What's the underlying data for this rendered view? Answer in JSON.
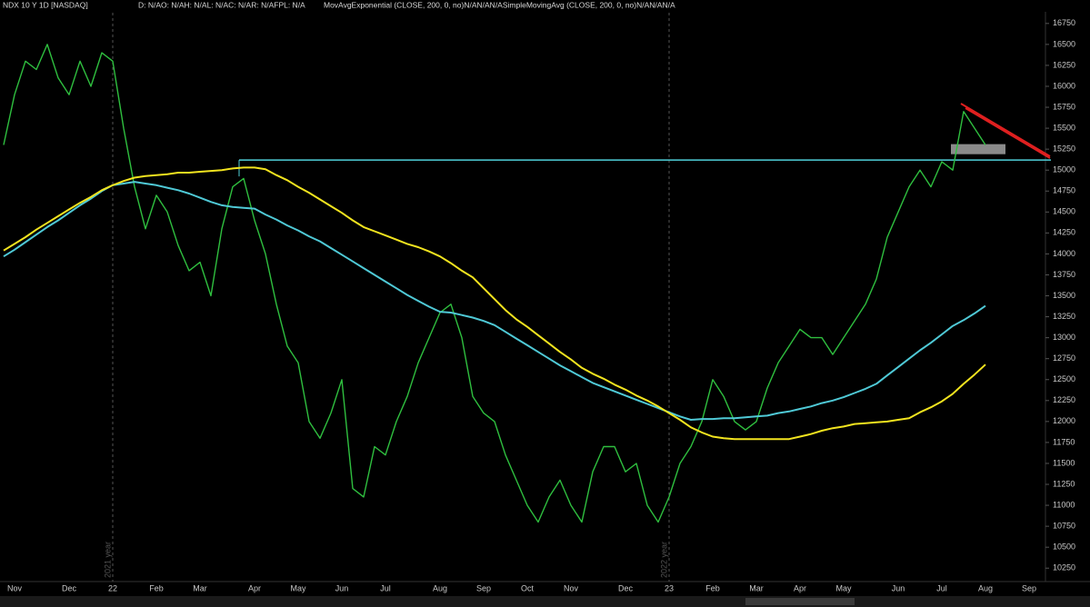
{
  "chart_data": {
    "type": "line",
    "title": "NDX 10 Y 1D [NASDAQ]",
    "subtitle": "D: N/AO: N/AH: N/AL: N/AC: N/AR: N/AFPL: N/A",
    "study_label": "MovAvgExponential (CLOSE, 200, 0, no)N/AN/AN/ASimpleMovingAvg (CLOSE, 200, 0, no)N/AN/AN/A",
    "year_labels": [
      "2021 year",
      "2022 year"
    ],
    "categories": [
      null,
      "Nov",
      null,
      null,
      null,
      null,
      "Dec",
      null,
      null,
      null,
      "22",
      null,
      null,
      null,
      "Feb",
      null,
      null,
      null,
      "Mar",
      null,
      null,
      null,
      null,
      "Apr",
      null,
      null,
      null,
      "May",
      null,
      null,
      null,
      "Jun",
      null,
      null,
      null,
      "Jul",
      null,
      null,
      null,
      null,
      "Aug",
      null,
      null,
      null,
      "Sep",
      null,
      null,
      null,
      "Oct",
      null,
      null,
      null,
      "Nov",
      null,
      null,
      null,
      null,
      "Dec",
      null,
      null,
      null,
      "23",
      null,
      null,
      null,
      "Feb",
      null,
      null,
      null,
      "Mar",
      null,
      null,
      null,
      "Apr",
      null,
      null,
      null,
      "May",
      null,
      null,
      null,
      null,
      "Jun",
      null,
      null,
      null,
      "Jul",
      null,
      null,
      null,
      "Aug",
      null,
      null,
      null,
      "Sep"
    ],
    "series": [
      {
        "color": "#2fbf3f",
        "values": [
          15300,
          15900,
          16300,
          16200,
          16500,
          16100,
          15900,
          16300,
          16000,
          16400,
          16300,
          15500,
          14800,
          14300,
          14700,
          14500,
          14100,
          13800,
          13900,
          13500,
          14300,
          14800,
          14900,
          14400,
          14000,
          13400,
          12900,
          12700,
          12000,
          11800,
          12100,
          12500,
          11200,
          11100,
          11700,
          11600,
          12000,
          12300,
          12700,
          13000,
          13300,
          13400,
          13000,
          12300,
          12100,
          12000,
          11600,
          11300,
          11000,
          10800,
          11100,
          11300,
          11000,
          10800,
          11400,
          11700,
          11700,
          11400,
          11500,
          11000,
          10800,
          11100,
          11500,
          11700,
          12000,
          12500,
          12300,
          12000,
          11900,
          12000,
          12400,
          12700,
          12900,
          13100,
          13000,
          13000,
          12800,
          13000,
          13200,
          13400,
          13700,
          14200,
          14500,
          14800,
          15000,
          14800,
          15100,
          15000,
          15700,
          15500,
          15300,
          null,
          null,
          null,
          null
        ]
      },
      {
        "color": "#4fc9d6",
        "values": [
          13970,
          14050,
          14140,
          14230,
          14320,
          14400,
          14490,
          14580,
          14660,
          14750,
          14820,
          14840,
          14860,
          14840,
          14820,
          14790,
          14760,
          14720,
          14670,
          14620,
          14580,
          14560,
          14550,
          14540,
          14470,
          14410,
          14340,
          14280,
          14210,
          14150,
          14070,
          13990,
          13910,
          13830,
          13750,
          13670,
          13590,
          13510,
          13440,
          13370,
          13310,
          13300,
          13270,
          13240,
          13200,
          13150,
          13070,
          12990,
          12910,
          12830,
          12750,
          12670,
          12600,
          12530,
          12460,
          12410,
          12360,
          12310,
          12260,
          12210,
          12160,
          12110,
          12060,
          12020,
          12030,
          12030,
          12040,
          12040,
          12050,
          12060,
          12070,
          12100,
          12120,
          12150,
          12180,
          12220,
          12250,
          12290,
          12340,
          12390,
          12450,
          12550,
          12650,
          12750,
          12850,
          12940,
          13040,
          13140,
          13210,
          13290,
          13380,
          null,
          null,
          null,
          null
        ]
      },
      {
        "color": "#f2e41f",
        "values": [
          14040,
          14120,
          14200,
          14290,
          14370,
          14450,
          14530,
          14610,
          14680,
          14760,
          14820,
          14870,
          14910,
          14930,
          14940,
          14950,
          14970,
          14970,
          14980,
          14990,
          15000,
          15020,
          15030,
          15030,
          15010,
          14940,
          14880,
          14800,
          14730,
          14650,
          14570,
          14490,
          14400,
          14320,
          14270,
          14220,
          14170,
          14120,
          14080,
          14030,
          13970,
          13890,
          13800,
          13720,
          13590,
          13460,
          13330,
          13220,
          13130,
          13030,
          12930,
          12830,
          12740,
          12640,
          12570,
          12510,
          12440,
          12380,
          12310,
          12250,
          12180,
          12100,
          12020,
          11930,
          11870,
          11820,
          11800,
          11790,
          11790,
          11790,
          11790,
          11790,
          11790,
          11820,
          11850,
          11890,
          11920,
          11940,
          11970,
          11980,
          11990,
          12000,
          12020,
          12040,
          12110,
          12170,
          12240,
          12330,
          12450,
          12560,
          12680,
          null,
          null,
          null,
          null
        ]
      }
    ],
    "hlines": [
      {
        "value": 15120,
        "color": "#4fd1d9"
      }
    ],
    "zones": [
      {
        "from": 15190,
        "to": 15310,
        "color": "#8a8a8a"
      }
    ],
    "ylim": [
      10090,
      17030
    ],
    "yticks": [
      10250,
      10500,
      10750,
      11000,
      11250,
      11500,
      11750,
      12000,
      12250,
      12500,
      12750,
      13000,
      13250,
      13500,
      13750,
      14000,
      14250,
      14500,
      14750,
      15000,
      15250,
      15500,
      15750,
      16000,
      16250,
      16500,
      16750
    ],
    "grid": false
  }
}
